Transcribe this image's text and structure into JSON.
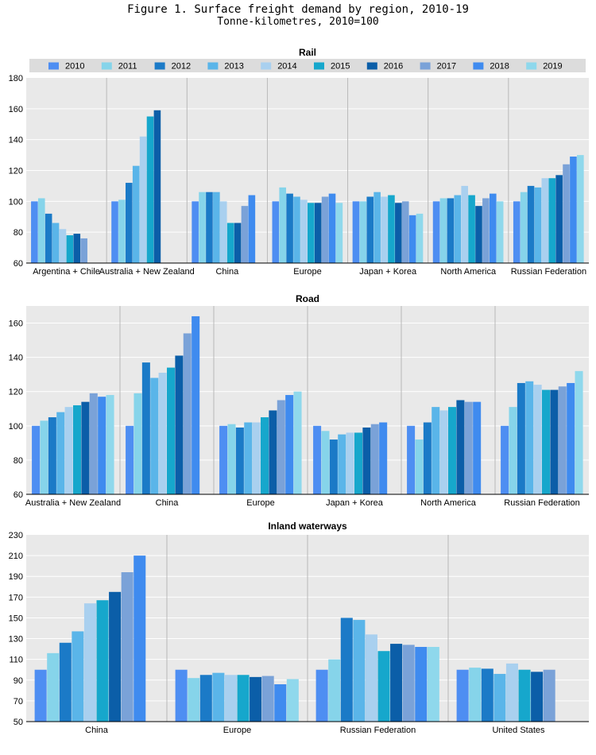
{
  "figure": {
    "title": "Figure 1. Surface freight demand by region, 2010-19",
    "subtitle": "Tonne-kilometres, 2010=100"
  },
  "colors": {
    "panel_bg": "#e9e9e9",
    "grid": "#ffffff",
    "separator": "#b8b8b8",
    "legend_bg": "#dcdcdc",
    "series": [
      "#4e8ef2",
      "#86d4ea",
      "#1b7ac7",
      "#5ab5e9",
      "#a9d0ef",
      "#16a7cc",
      "#0b5ea8",
      "#7aa2d8",
      "#3f8bef",
      "#8fd8ec"
    ]
  },
  "chart_data": [
    {
      "type": "bar",
      "title": "Rail",
      "ylim": [
        60,
        180
      ],
      "yticks": [
        60,
        80,
        100,
        120,
        140,
        160,
        180
      ],
      "legend": "top",
      "grid": true,
      "categories": [
        "Argentina + Chile",
        "Australia + New Zealand",
        "China",
        "Europe",
        "Japan + Korea",
        "North America",
        "Russian Federation"
      ],
      "series": [
        {
          "name": "2010",
          "values": [
            100,
            100,
            100,
            100,
            100,
            100,
            100
          ]
        },
        {
          "name": "2011",
          "values": [
            102,
            101,
            106,
            109,
            100,
            102,
            106
          ]
        },
        {
          "name": "2012",
          "values": [
            92,
            112,
            106,
            105,
            103,
            102,
            110
          ]
        },
        {
          "name": "2013",
          "values": [
            86,
            123,
            106,
            103,
            106,
            104,
            109
          ]
        },
        {
          "name": "2014",
          "values": [
            82,
            142,
            100,
            101,
            103,
            110,
            115
          ]
        },
        {
          "name": "2015",
          "values": [
            78,
            155,
            86,
            99,
            104,
            104,
            115
          ]
        },
        {
          "name": "2016",
          "values": [
            79,
            159,
            86,
            99,
            99,
            97,
            117
          ]
        },
        {
          "name": "2017",
          "values": [
            76,
            null,
            97,
            103,
            100,
            102,
            124
          ]
        },
        {
          "name": "2018",
          "values": [
            null,
            null,
            104,
            105,
            91,
            105,
            129
          ]
        },
        {
          "name": "2019",
          "values": [
            null,
            null,
            null,
            99,
            92,
            100,
            130
          ]
        }
      ]
    },
    {
      "type": "bar",
      "title": "Road",
      "ylim": [
        60,
        170
      ],
      "yticks": [
        60,
        80,
        100,
        120,
        140,
        160
      ],
      "grid": true,
      "categories": [
        "Australia + New Zealand",
        "China",
        "Europe",
        "Japan + Korea",
        "North America",
        "Russian Federation"
      ],
      "series": [
        {
          "name": "2010",
          "values": [
            100,
            100,
            100,
            100,
            100,
            100
          ]
        },
        {
          "name": "2011",
          "values": [
            103,
            119,
            101,
            97,
            92,
            111
          ]
        },
        {
          "name": "2012",
          "values": [
            105,
            137,
            99,
            92,
            102,
            125
          ]
        },
        {
          "name": "2013",
          "values": [
            108,
            128,
            102,
            95,
            111,
            126
          ]
        },
        {
          "name": "2014",
          "values": [
            111,
            131,
            102,
            96,
            109,
            124
          ]
        },
        {
          "name": "2015",
          "values": [
            112,
            134,
            105,
            96,
            111,
            121
          ]
        },
        {
          "name": "2016",
          "values": [
            114,
            141,
            109,
            99,
            115,
            121
          ]
        },
        {
          "name": "2017",
          "values": [
            119,
            154,
            115,
            101,
            114,
            123
          ]
        },
        {
          "name": "2018",
          "values": [
            117,
            164,
            118,
            102,
            114,
            125
          ]
        },
        {
          "name": "2019",
          "values": [
            118,
            null,
            120,
            null,
            null,
            132
          ]
        }
      ]
    },
    {
      "type": "bar",
      "title": "Inland waterways",
      "ylim": [
        50,
        230
      ],
      "yticks": [
        50,
        70,
        90,
        110,
        130,
        150,
        170,
        190,
        210,
        230
      ],
      "grid": true,
      "categories": [
        "China",
        "Europe",
        "Russian Federation",
        "United States"
      ],
      "series": [
        {
          "name": "2010",
          "values": [
            100,
            100,
            100,
            100
          ]
        },
        {
          "name": "2011",
          "values": [
            116,
            92,
            110,
            102
          ]
        },
        {
          "name": "2012",
          "values": [
            126,
            95,
            150,
            101
          ]
        },
        {
          "name": "2013",
          "values": [
            137,
            97,
            148,
            96
          ]
        },
        {
          "name": "2014",
          "values": [
            164,
            95,
            134,
            106
          ]
        },
        {
          "name": "2015",
          "values": [
            167,
            95,
            118,
            100
          ]
        },
        {
          "name": "2016",
          "values": [
            175,
            93,
            125,
            98
          ]
        },
        {
          "name": "2017",
          "values": [
            194,
            94,
            124,
            100
          ]
        },
        {
          "name": "2018",
          "values": [
            210,
            86,
            122,
            null
          ]
        },
        {
          "name": "2019",
          "values": [
            null,
            91,
            122,
            null
          ]
        }
      ]
    }
  ]
}
